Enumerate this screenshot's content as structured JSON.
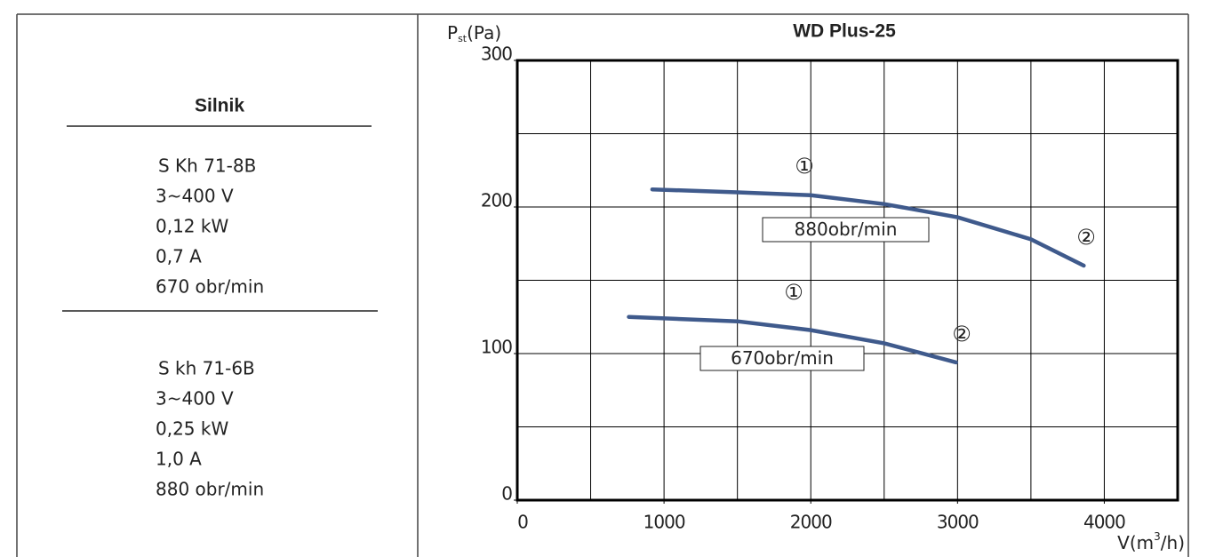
{
  "motor_table": {
    "header": "Silnik",
    "blocks": [
      [
        "S Kh 71-8B",
        "3~400 V",
        "0,12 kW",
        "0,7 A",
        "670 obr/min"
      ],
      [
        "S kh 71-6B",
        "3~400 V",
        "0,25 kW",
        "1,0 A",
        "880 obr/min"
      ]
    ]
  },
  "chart_data": {
    "type": "line",
    "title": "WD Plus-25",
    "y_label": {
      "main": "P",
      "sub": "st",
      "unit": "(Pa)"
    },
    "x_label": {
      "main": "V(m",
      "sup": "3",
      "unit": "/h)"
    },
    "xlim": [
      0,
      4500
    ],
    "ylim": [
      0,
      300
    ],
    "xticks": [
      0,
      1000,
      2000,
      3000,
      4000
    ],
    "yticks": [
      0,
      100,
      200,
      300
    ],
    "xgrid": [
      500,
      1000,
      1500,
      2000,
      2500,
      3000,
      3500,
      4000
    ],
    "ygrid": [
      50,
      100,
      150,
      200,
      250
    ],
    "series": [
      {
        "name": "880obr/min",
        "color": "#3f5a8c",
        "start_label": "①",
        "end_label": "②",
        "x": [
          920,
          1500,
          2000,
          2500,
          3000,
          3500,
          3860
        ],
        "values": [
          212,
          210,
          208,
          202,
          193,
          178,
          160
        ]
      },
      {
        "name": "670obr/min",
        "color": "#3f5a8c",
        "start_label": "①",
        "end_label": "②",
        "x": [
          760,
          1500,
          2000,
          2500,
          2990
        ],
        "values": [
          125,
          122,
          116,
          107,
          94
        ]
      }
    ]
  }
}
